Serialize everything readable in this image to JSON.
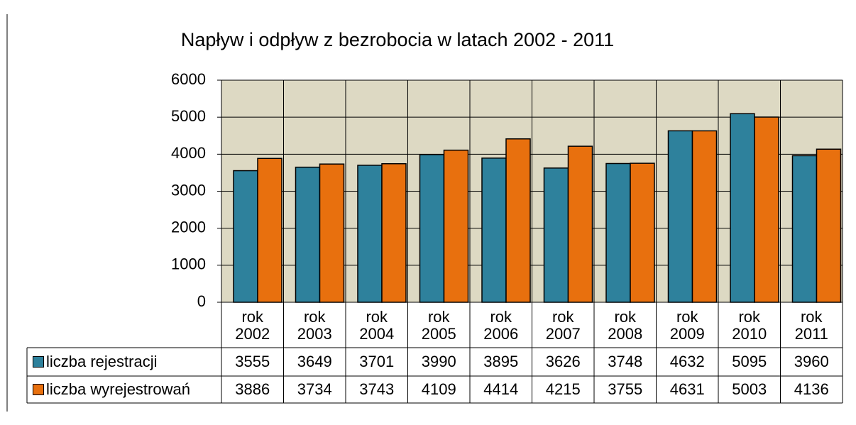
{
  "chart_data": {
    "type": "bar",
    "title": "Napływ i odpływ z bezrobocia w latach 2002 - 2011",
    "categories": [
      "rok 2002",
      "rok 2003",
      "rok 2004",
      "rok 2005",
      "rok 2006",
      "rok 2007",
      "rok 2008",
      "rok 2009",
      "rok 2010",
      "rok 2011"
    ],
    "series": [
      {
        "name": "liczba rejestracji",
        "color": "#2e819c",
        "values": [
          3555,
          3649,
          3701,
          3990,
          3895,
          3626,
          3748,
          4632,
          5095,
          3960
        ]
      },
      {
        "name": "liczba wyrejestrowań",
        "color": "#e8700e",
        "values": [
          3886,
          3734,
          3743,
          4109,
          4414,
          4215,
          3755,
          4631,
          5003,
          4136
        ]
      }
    ],
    "ylim": [
      0,
      6000
    ],
    "yticks": [
      0,
      1000,
      2000,
      3000,
      4000,
      5000,
      6000
    ],
    "grid": true
  }
}
